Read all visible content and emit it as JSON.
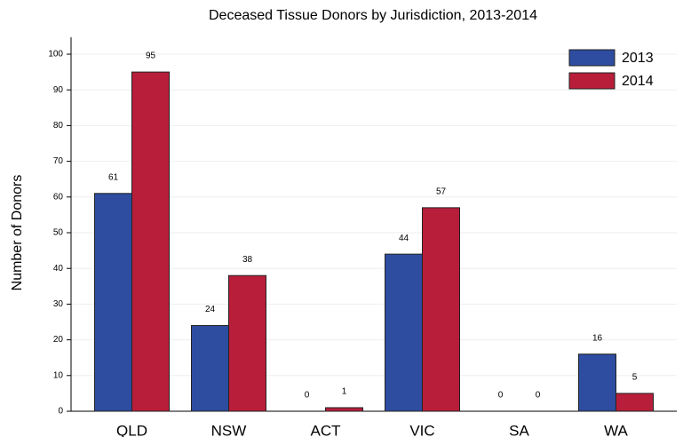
{
  "chart_data": {
    "type": "bar",
    "title": "Deceased Tissue Donors by Jurisdiction, 2013-2014",
    "y_label": "Number of Donors",
    "categories": [
      "QLD",
      "NSW",
      "ACT",
      "VIC",
      "SA",
      "WA"
    ],
    "series": [
      {
        "name": "2013",
        "color": "#2e4da0",
        "values": [
          61,
          24,
          0,
          44,
          0,
          16
        ]
      },
      {
        "name": "2014",
        "color": "#b81e3a",
        "values": [
          95,
          38,
          1,
          57,
          0,
          5
        ]
      }
    ],
    "ylim": [
      0,
      100
    ],
    "yticks": [
      0,
      10,
      20,
      30,
      40,
      50,
      60,
      70,
      80,
      90,
      100
    ],
    "grid": true,
    "legend": "top-right"
  }
}
